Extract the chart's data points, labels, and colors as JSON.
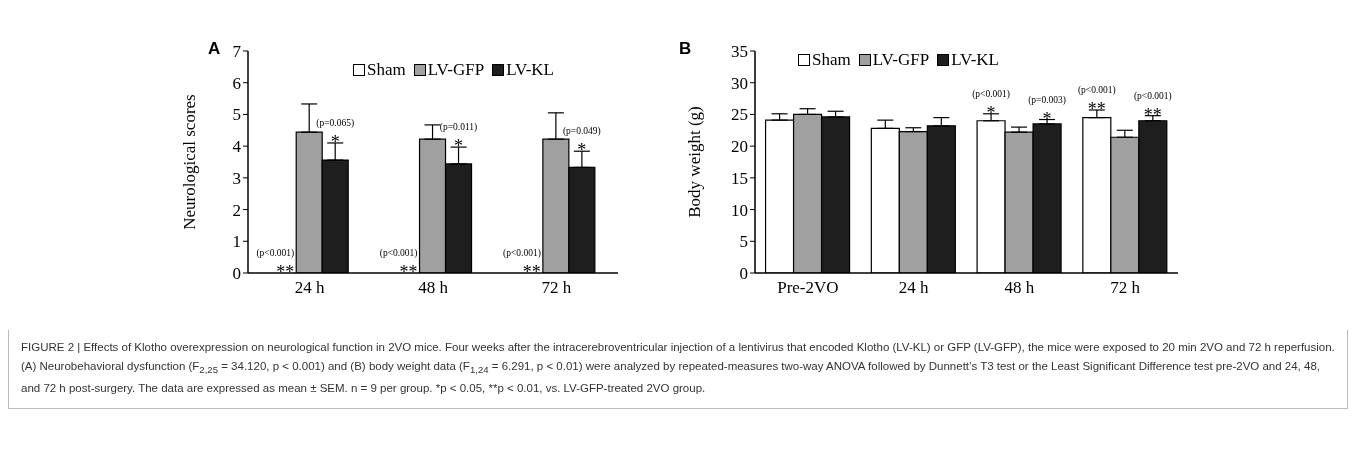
{
  "chart_data": [
    {
      "type": "bar",
      "title": "A",
      "ylabel": "Neurological scores",
      "categories": [
        "24 h",
        "48 h",
        "72 h"
      ],
      "ylim": [
        0,
        7
      ],
      "yticks": [
        0,
        1,
        2,
        3,
        4,
        5,
        6,
        7
      ],
      "legend": "top",
      "series": [
        {
          "name": "Sham",
          "color": "#ffffff",
          "values": [
            0,
            0,
            0
          ]
        },
        {
          "name": "LV-GFP",
          "color": "#a0a0a0",
          "values": [
            4.44,
            4.22,
            4.22
          ],
          "errors": [
            [
              4.44,
              5.33
            ],
            [
              4.22,
              4.67
            ],
            [
              4.22,
              5.05
            ]
          ]
        },
        {
          "name": "LV-KL",
          "color": "#1e1e1e",
          "values": [
            3.56,
            3.44,
            3.33
          ],
          "errors": [
            [
              3.56,
              4.1
            ],
            [
              3.44,
              3.97
            ],
            [
              3.33,
              3.84
            ]
          ]
        }
      ],
      "annotations": [
        "**",
        "(p<0.001)",
        "**",
        "(p<0.001)",
        "**",
        "(p<0.001)",
        "*",
        "(p=0.065)",
        "*",
        "(p=0.011)",
        "*",
        "(p=0.049)"
      ]
    },
    {
      "type": "bar",
      "title": "B",
      "ylabel": "Body weight (g)",
      "categories": [
        "Pre-2VO",
        "24 h",
        "48 h",
        "72 h"
      ],
      "ylim": [
        0,
        35
      ],
      "yticks": [
        0,
        5,
        10,
        15,
        20,
        25,
        30,
        35
      ],
      "legend": "top",
      "series": [
        {
          "name": "Sham",
          "color": "#ffffff",
          "values": [
            24.1,
            22.8,
            24.0,
            24.5
          ],
          "errors": [
            [
              24.1,
              25.1
            ],
            [
              22.8,
              24.1
            ],
            [
              24.0,
              25.1
            ],
            [
              24.5,
              25.7
            ]
          ]
        },
        {
          "name": "LV-GFP",
          "color": "#a0a0a0",
          "values": [
            25.0,
            22.3,
            22.2,
            21.4
          ],
          "errors": [
            [
              25.0,
              25.9
            ],
            [
              22.3,
              22.9
            ],
            [
              22.2,
              23.0
            ],
            [
              21.4,
              22.5
            ]
          ]
        },
        {
          "name": "LV-KL",
          "color": "#1e1e1e",
          "values": [
            24.6,
            23.2,
            23.5,
            24.0
          ],
          "errors": [
            [
              24.6,
              25.5
            ],
            [
              23.2,
              24.5
            ],
            [
              23.5,
              24.2
            ],
            [
              24.0,
              24.8
            ]
          ]
        }
      ],
      "annotations": [
        "*",
        "(p<0.001)",
        "*",
        "(p=0.003)",
        "**",
        "(p<0.001)",
        "**",
        "(p<0.001)"
      ]
    },
    {
      "type": "other",
      "annotations": [
        "FIGURE 2 | Effects of Klotho overexpression on neurological function in 2VO mice. Four weeks after the intracerebroventricular injection of a lentivirus that encoded Klotho (LV-KL) or GFP (LV-GFP), the mice were exposed to 20 min 2VO and 72 h reperfusion. (A) Neurobehavioral dysfunction (F$_{2,25}$ = 34.120, p < 0.001) and (B) body weight data (F$_{1,24}$ = 6.291, p < 0.01) were analyzed by repeated-measures two-way ANOVA followed by Dunnett’s T3 test or the Least Significant Difference test pre-2VO and 24, 48, and 72 h post-surgery. The data are expressed as mean ± SEM. n = 9 per group. *p < 0.05, **p < 0.01, vs. LV-GFP-treated 2VO group."
      ]
    }
  ]
}
